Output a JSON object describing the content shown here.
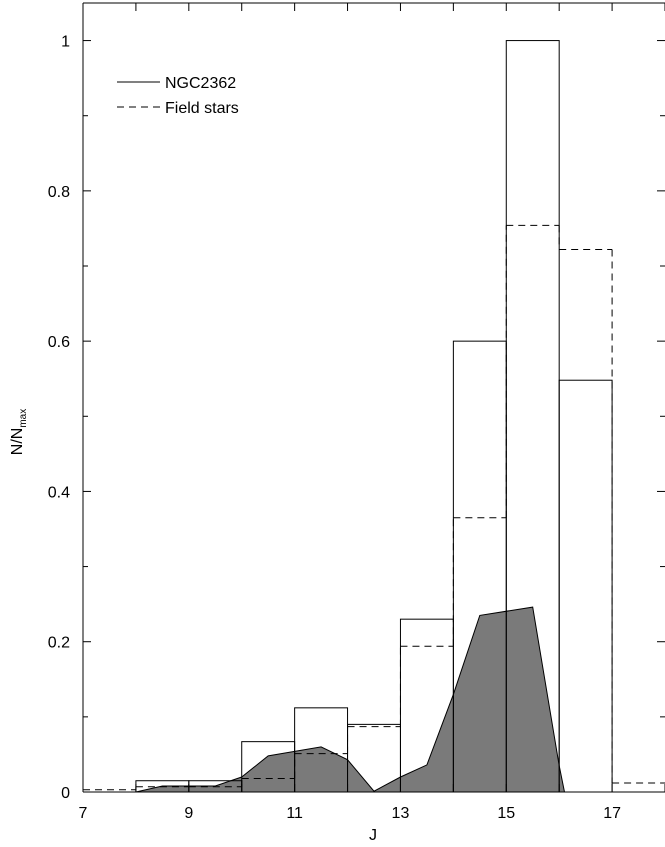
{
  "chart_data": {
    "type": "bar",
    "xlabel": "J",
    "ylabel_main": "N/N",
    "ylabel_sub": "max",
    "xlim": [
      7,
      18
    ],
    "ylim": [
      0,
      1.05
    ],
    "xticks": [
      "7",
      "9",
      "11",
      "13",
      "15",
      "17"
    ],
    "yticks": [
      "0",
      "0.2",
      "0.4",
      "0.6",
      "0.8",
      "1"
    ],
    "legend_position": "top-left",
    "series": [
      {
        "name": "NGC2362",
        "style": "solid",
        "bins": [
          {
            "x0": 8,
            "x1": 9,
            "y": 0.015
          },
          {
            "x0": 9,
            "x1": 10,
            "y": 0.015
          },
          {
            "x0": 10,
            "x1": 11,
            "y": 0.067
          },
          {
            "x0": 11,
            "x1": 12,
            "y": 0.112
          },
          {
            "x0": 12,
            "x1": 13,
            "y": 0.09
          },
          {
            "x0": 13,
            "x1": 14,
            "y": 0.23
          },
          {
            "x0": 14,
            "x1": 15,
            "y": 0.6
          },
          {
            "x0": 15,
            "x1": 16,
            "y": 1.0
          },
          {
            "x0": 16,
            "x1": 17,
            "y": 0.548
          }
        ]
      },
      {
        "name": "Field stars",
        "style": "dashed",
        "bins": [
          {
            "x0": 7,
            "x1": 8,
            "y": 0.003
          },
          {
            "x0": 8,
            "x1": 9,
            "y": 0.007
          },
          {
            "x0": 9,
            "x1": 10,
            "y": 0.007
          },
          {
            "x0": 10,
            "x1": 11,
            "y": 0.018
          },
          {
            "x0": 11,
            "x1": 12,
            "y": 0.051
          },
          {
            "x0": 12,
            "x1": 13,
            "y": 0.087
          },
          {
            "x0": 13,
            "x1": 14,
            "y": 0.194
          },
          {
            "x0": 14,
            "x1": 15,
            "y": 0.365
          },
          {
            "x0": 15,
            "x1": 16,
            "y": 0.754
          },
          {
            "x0": 16,
            "x1": 17,
            "y": 0.722
          },
          {
            "x0": 17,
            "x1": 18,
            "y": 0.012
          }
        ]
      },
      {
        "name": "",
        "style": "filled-grey",
        "x": [
          8,
          8.5,
          9.5,
          10,
          10.5,
          11.5,
          12,
          12.5,
          13,
          13.5,
          14,
          14.5,
          15.5,
          16,
          16.1
        ],
        "y": [
          0,
          0.008,
          0.008,
          0.02,
          0.048,
          0.06,
          0.043,
          0.001,
          0.02,
          0.036,
          0.13,
          0.235,
          0.246,
          0.035,
          0
        ]
      }
    ]
  }
}
